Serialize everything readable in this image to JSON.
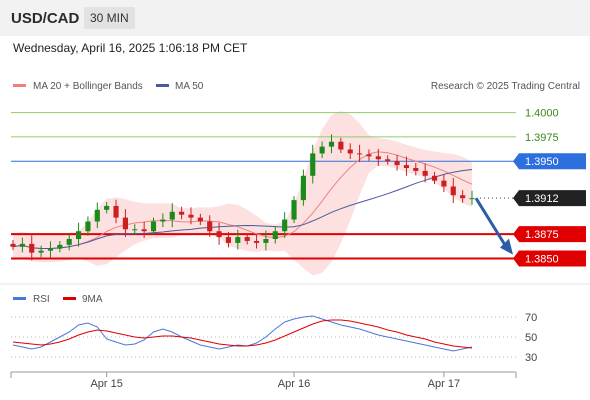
{
  "header": {
    "symbol": "USD/CAD",
    "timeframe": "30 MIN",
    "datetime": "Wednesday, April 16, 2025 1:06:18 PM CET"
  },
  "legend": {
    "ma20_bb": "MA 20 + Bollinger Bands",
    "ma50": "MA 50",
    "credit": "Research © 2025 Trading Central",
    "rsi": "RSI",
    "ma9": "9MA"
  },
  "colors": {
    "candle_up": "#1a8a1a",
    "candle_down": "#cc1f1f",
    "bollinger_fill": "#fde1e1",
    "ma20": "#f08080",
    "ma50": "#4a5a9a",
    "resistance_green": "#8ccd6a",
    "pivot_blue": "#2e6fe0",
    "support_red": "#e00000",
    "last_price_bg": "#222222",
    "arrow": "#2b5ca8",
    "rsi_line": "#4a78d8",
    "rsi_ma": "#e00000"
  },
  "chart_data": [
    {
      "type": "candlestick",
      "title": "USD/CAD 30 MIN",
      "x_ticks": [
        "Apr 15",
        "Apr 16",
        "Apr 17"
      ],
      "ylim": [
        1.3833,
        1.4016
      ],
      "levels": [
        {
          "value": 1.4,
          "label": "1.4000",
          "kind": "resistance"
        },
        {
          "value": 1.3975,
          "label": "1.3975",
          "kind": "resistance"
        },
        {
          "value": 1.395,
          "label": "1.3950",
          "kind": "pivot"
        },
        {
          "value": 1.3912,
          "label": "1.3912",
          "kind": "last"
        },
        {
          "value": 1.3875,
          "label": "1.3875",
          "kind": "support"
        },
        {
          "value": 1.385,
          "label": "1.3850",
          "kind": "support"
        }
      ],
      "close_series": [
        1.3862,
        1.3865,
        1.3856,
        1.3858,
        1.386,
        1.3864,
        1.387,
        1.3878,
        1.3888,
        1.39,
        1.3904,
        1.3892,
        1.388,
        1.388,
        1.3878,
        1.3888,
        1.389,
        1.3898,
        1.3895,
        1.3892,
        1.3888,
        1.3878,
        1.3872,
        1.3866,
        1.3872,
        1.3868,
        1.3866,
        1.387,
        1.3878,
        1.389,
        1.391,
        1.3935,
        1.3958,
        1.3965,
        1.397,
        1.3962,
        1.3958,
        1.3957,
        1.3955,
        1.3952,
        1.395,
        1.3946,
        1.3943,
        1.394,
        1.3935,
        1.393,
        1.3924,
        1.3915,
        1.3912,
        1.3912
      ],
      "projection": {
        "from": 1.3912,
        "to": 1.3856
      }
    },
    {
      "type": "line",
      "title": "",
      "ylim": [
        25,
        75
      ],
      "y_ticks": [
        70,
        50,
        30
      ],
      "series": [
        {
          "name": "RSI",
          "values": [
            42,
            40,
            38,
            40,
            45,
            50,
            55,
            62,
            64,
            60,
            48,
            45,
            42,
            43,
            47,
            55,
            58,
            55,
            50,
            46,
            42,
            40,
            38,
            40,
            42,
            41,
            44,
            50,
            58,
            65,
            68,
            70,
            71,
            68,
            65,
            62,
            60,
            58,
            55,
            52,
            50,
            48,
            46,
            44,
            42,
            40,
            38,
            36,
            38,
            40
          ]
        },
        {
          "name": "9MA",
          "values": [
            45,
            44,
            43,
            42,
            43,
            45,
            48,
            52,
            55,
            57,
            56,
            54,
            52,
            50,
            49,
            50,
            51,
            51,
            50,
            49,
            47,
            45,
            43,
            42,
            41,
            41,
            42,
            44,
            47,
            51,
            55,
            59,
            63,
            66,
            67,
            67,
            66,
            64,
            62,
            60,
            57,
            55,
            52,
            50,
            48,
            45,
            43,
            41,
            40,
            39
          ]
        }
      ]
    }
  ]
}
